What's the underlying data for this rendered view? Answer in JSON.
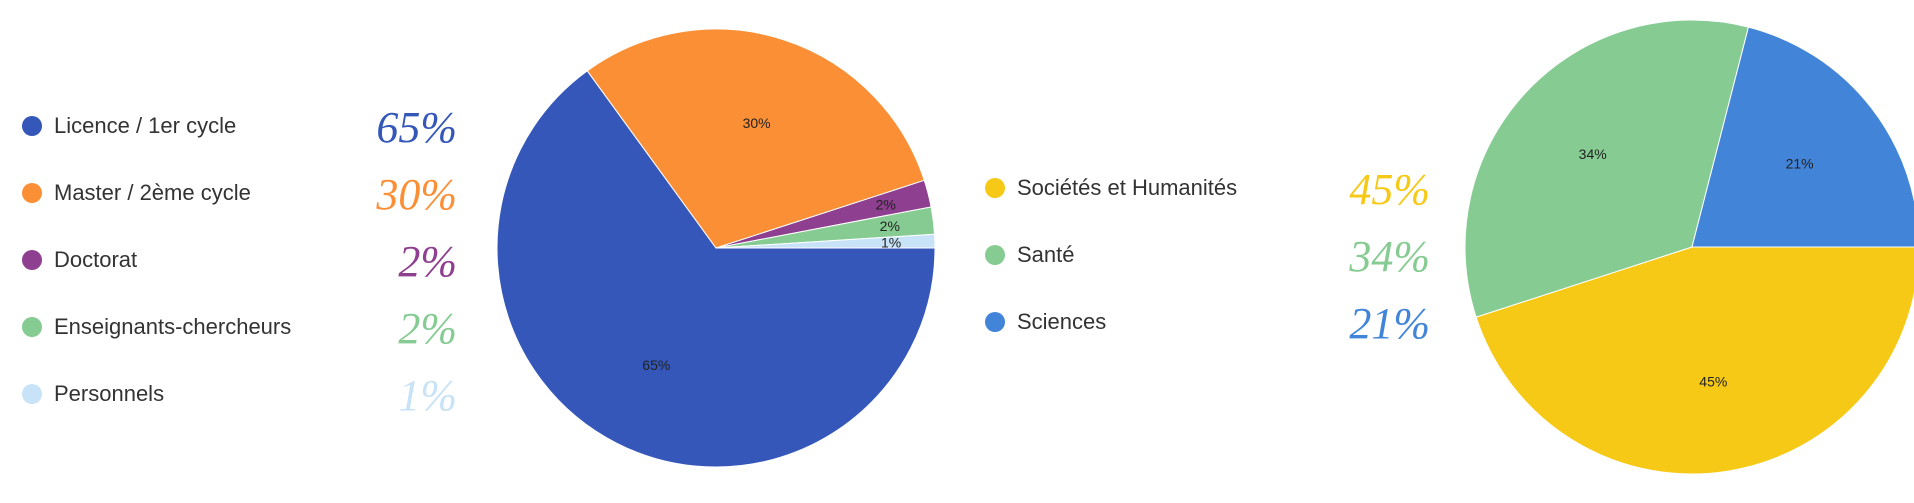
{
  "chart_data": [
    {
      "type": "pie",
      "categories": [
        "Licence / 1er cycle",
        "Master / 2ème cycle",
        "Doctorat",
        "Enseignants-chercheurs",
        "Personnels"
      ],
      "values": [
        65,
        30,
        2,
        2,
        1
      ],
      "value_labels": [
        "65%",
        "30%",
        "2%",
        "2%",
        "1%"
      ],
      "colors": [
        "#3457b9",
        "#fb8f35",
        "#8e3f8f",
        "#86cb92",
        "#c8e2f8"
      ],
      "legend_placement": "left"
    },
    {
      "type": "pie",
      "categories": [
        "Sociétés et Humanités",
        "Santé",
        "Sciences"
      ],
      "values": [
        45,
        34,
        21
      ],
      "value_labels": [
        "45%",
        "34%",
        "21%"
      ],
      "colors": [
        "#f5c916",
        "#86cb92",
        "#4184d8"
      ],
      "legend_placement": "left"
    }
  ]
}
